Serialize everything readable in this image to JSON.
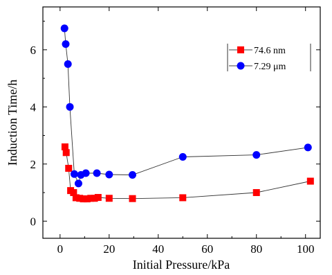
{
  "chart_data": {
    "type": "scatter",
    "xlabel": "Initial Pressure/kPa",
    "ylabel": "Induction Time/h",
    "xlim": [
      -7,
      106
    ],
    "ylim": [
      -0.6,
      7.5
    ],
    "xticks": [
      0,
      20,
      40,
      60,
      80,
      100
    ],
    "yticks": [
      0,
      2,
      4,
      6
    ],
    "grid": false,
    "legend_position": "top-right",
    "series": [
      {
        "name": "74.6 nm",
        "marker": "square",
        "color": "#ff0000",
        "x": [
          2,
          2.5,
          3.5,
          4.3,
          5.5,
          6.5,
          8,
          9.5,
          11,
          12.5,
          14,
          15.5,
          20,
          29.5,
          50,
          80,
          102
        ],
        "y": [
          2.6,
          2.4,
          1.85,
          1.07,
          1.0,
          0.82,
          0.8,
          0.78,
          0.78,
          0.8,
          0.8,
          0.83,
          0.8,
          0.79,
          0.82,
          1.0,
          1.4
        ]
      },
      {
        "name": "7.29 μm",
        "marker": "circle",
        "color": "#0000ff",
        "x": [
          1.8,
          2.3,
          3.2,
          4.0,
          5.8,
          7.5,
          8.5,
          10.5,
          15,
          20,
          29.5,
          50,
          80,
          101
        ],
        "y": [
          6.75,
          6.2,
          5.5,
          4.0,
          1.65,
          1.32,
          1.62,
          1.68,
          1.68,
          1.63,
          1.62,
          2.25,
          2.32,
          2.58
        ]
      }
    ]
  }
}
